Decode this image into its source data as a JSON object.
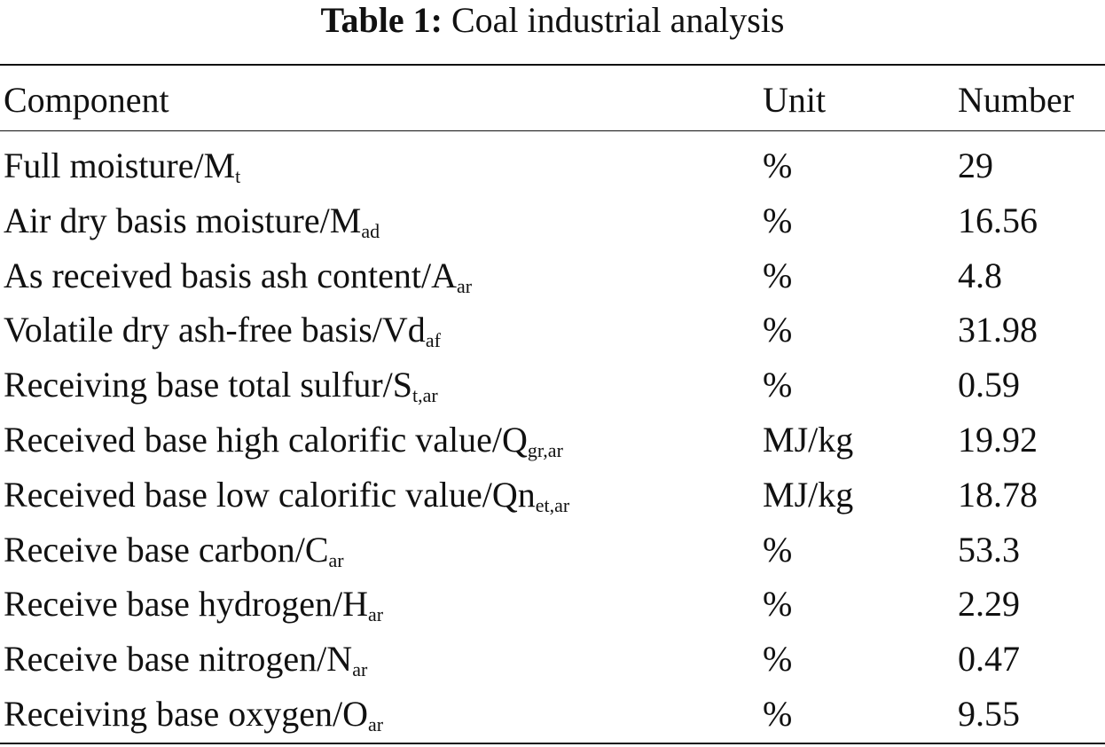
{
  "title": {
    "label": "Table 1:",
    "text": "Coal industrial analysis"
  },
  "table": {
    "header": [
      "Component",
      "Unit",
      "Number"
    ],
    "rows": [
      [
        {
          "text": "Full moisture/M",
          "sub": "t"
        },
        "%",
        29
      ],
      [
        {
          "text": "Air dry basis moisture/M",
          "sub": "ad"
        },
        "%",
        16.56
      ],
      [
        {
          "text": "As received basis ash content/A",
          "sub": "ar"
        },
        "%",
        4.8
      ],
      [
        {
          "text": "Volatile dry ash-free basis/Vd",
          "sub": "af"
        },
        "%",
        31.98
      ],
      [
        {
          "text": "Receiving base total sulfur/S",
          "sub": "t,ar"
        },
        "%",
        0.59
      ],
      [
        {
          "text": "Received base high calorific value/Q",
          "sub": "gr,ar"
        },
        "MJ/kg",
        19.92
      ],
      [
        {
          "text": "Received base low calorific value/Qn",
          "sub": "et,ar"
        },
        "MJ/kg",
        18.78
      ],
      [
        {
          "text": "Receive base carbon/C",
          "sub": "ar"
        },
        "%",
        53.3
      ],
      [
        {
          "text": "Receive base hydrogen/H",
          "sub": "ar"
        },
        "%",
        2.29
      ],
      [
        {
          "text": "Receive base nitrogen/N",
          "sub": "ar"
        },
        "%",
        0.47
      ],
      [
        {
          "text": "Receiving base oxygen/O",
          "sub": "ar"
        },
        "%",
        9.55
      ]
    ]
  }
}
